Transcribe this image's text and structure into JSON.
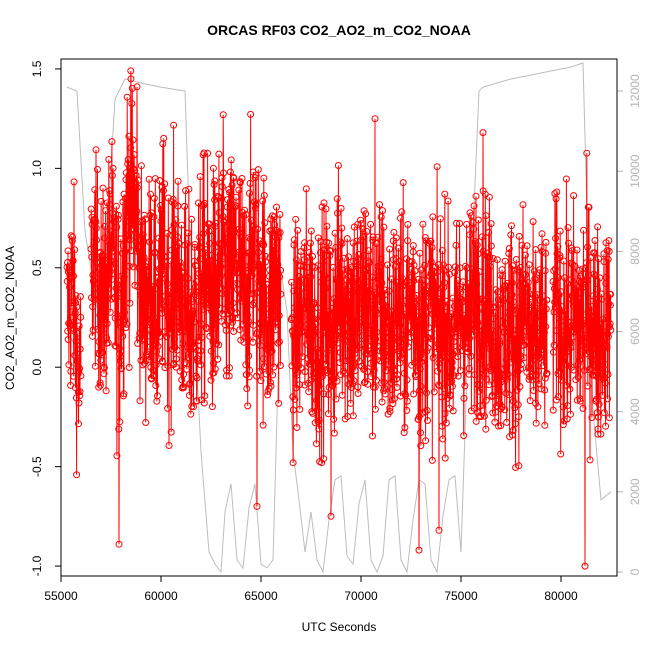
{
  "chart_data": {
    "type": "scatter",
    "title": "ORCAS RF03 CO2_AO2_m_CO2_NOAA",
    "xlabel": "UTC Seconds",
    "ylabel": "CO2_AO2_m_CO2_NOAA",
    "xlim": [
      55000,
      82800
    ],
    "ylim": [
      -1.05,
      1.55
    ],
    "y2lim": [
      -100,
      12800
    ],
    "x_ticks": [
      55000,
      60000,
      65000,
      70000,
      75000,
      80000
    ],
    "x_tick_labels": [
      "55000",
      "60000",
      "65000",
      "70000",
      "75000",
      "80000"
    ],
    "y_ticks": [
      -1.0,
      -0.5,
      0.0,
      0.5,
      1.0,
      1.5
    ],
    "y_tick_labels": [
      "-1.0",
      "-0.5",
      "0.0",
      "0.5",
      "1.0",
      "1.5"
    ],
    "y2_ticks": [
      0,
      2000,
      4000,
      6000,
      8000,
      10000,
      12000
    ],
    "y2_tick_labels": [
      "0",
      "2000",
      "4000",
      "6000",
      "8000",
      "10000",
      "12000"
    ],
    "colors": {
      "co2": "#ff0000",
      "altitude": "#bdbdbd"
    },
    "grid": false,
    "co2_series": {
      "x": [
        55300,
        55600,
        55900,
        56300,
        56700,
        57100,
        57500,
        57900,
        58300,
        58600,
        58900,
        59200,
        59500,
        59800,
        60100,
        60400,
        60700,
        61000,
        61400,
        61800,
        62200,
        62600,
        63000,
        63400,
        63800,
        64200,
        64600,
        65000,
        65400,
        65800,
        66200,
        66600,
        67000,
        67400,
        67800,
        68200,
        68600,
        69000,
        69400,
        69800,
        70200,
        70600,
        71000,
        71400,
        71800,
        72200,
        72600,
        73000,
        73400,
        73800,
        74200,
        74600,
        75000,
        75400,
        75800,
        76200,
        76600,
        77000,
        77400,
        77800,
        78200,
        78600,
        79000,
        79400,
        79800,
        80200,
        80600,
        81000,
        81400,
        81800,
        82200,
        82500
      ],
      "y": [
        0.25,
        0.4,
        -0.1,
        0.35,
        0.55,
        0.3,
        0.6,
        0.2,
        0.8,
        0.9,
        0.5,
        0.3,
        0.45,
        0.2,
        0.55,
        0.3,
        0.5,
        0.35,
        0.2,
        0.3,
        0.45,
        0.35,
        0.5,
        0.4,
        0.55,
        0.3,
        0.6,
        0.45,
        0.25,
        0.5,
        0.15,
        0.1,
        0.25,
        0.3,
        0.15,
        0.25,
        0.2,
        0.4,
        0.3,
        0.25,
        0.35,
        0.2,
        0.3,
        0.15,
        0.25,
        0.2,
        0.35,
        0.15,
        0.3,
        0.2,
        0.25,
        0.1,
        0.3,
        0.2,
        0.4,
        0.3,
        0.25,
        0.1,
        0.2,
        0.15,
        0.3,
        0.05,
        0.2,
        0.1,
        0.35,
        0.15,
        0.25,
        0.2,
        0.3,
        0.15,
        0.2,
        0.25
      ],
      "spread": [
        0.45,
        0.5,
        0.4,
        0.45,
        0.45,
        0.5,
        0.5,
        0.55,
        0.6,
        0.55,
        0.5,
        0.5,
        0.5,
        0.5,
        0.55,
        0.5,
        0.55,
        0.5,
        0.55,
        0.55,
        0.55,
        0.55,
        0.6,
        0.55,
        0.55,
        0.55,
        0.55,
        0.55,
        0.5,
        0.55,
        0.45,
        0.45,
        0.5,
        0.5,
        0.5,
        0.5,
        0.55,
        0.55,
        0.55,
        0.55,
        0.55,
        0.5,
        0.5,
        0.5,
        0.5,
        0.5,
        0.5,
        0.5,
        0.5,
        0.5,
        0.5,
        0.45,
        0.5,
        0.5,
        0.55,
        0.5,
        0.5,
        0.45,
        0.5,
        0.5,
        0.5,
        0.5,
        0.45,
        0.45,
        0.5,
        0.5,
        0.5,
        0.55,
        0.5,
        0.5,
        0.45,
        0.4
      ],
      "extremes": [
        [
          58500,
          1.45
        ],
        [
          58800,
          1.41
        ],
        [
          57900,
          -0.89
        ],
        [
          81200,
          -1.0
        ],
        [
          72900,
          -0.92
        ],
        [
          70700,
          1.25
        ],
        [
          76100,
          1.18
        ],
        [
          64800,
          -0.7
        ],
        [
          73900,
          -0.82
        ],
        [
          68500,
          -0.75
        ]
      ],
      "gaps": [
        [
          56000,
          56500
        ],
        [
          66000,
          66500
        ],
        [
          79300,
          79600
        ]
      ]
    },
    "altitude_series": {
      "x": [
        55300,
        55800,
        56200,
        57000,
        57700,
        58200,
        59000,
        60000,
        61200,
        61400,
        62000,
        62400,
        62700,
        63000,
        63200,
        63500,
        63800,
        64100,
        64400,
        64700,
        65000,
        65300,
        65600,
        66000,
        66300,
        66600,
        66900,
        67200,
        67500,
        67800,
        68100,
        68400,
        68700,
        69000,
        69300,
        69600,
        69900,
        70200,
        70500,
        70800,
        71100,
        71400,
        71700,
        72000,
        72300,
        72600,
        72900,
        73200,
        73500,
        73800,
        74100,
        74400,
        74700,
        75000,
        75300,
        75600,
        75900,
        76100,
        76800,
        77500,
        78500,
        79500,
        80500,
        81100,
        81300,
        81600,
        82000,
        82500
      ],
      "y": [
        12100,
        12000,
        8500,
        6000,
        11800,
        12300,
        12200,
        12100,
        12000,
        9000,
        3000,
        500,
        200,
        0,
        1500,
        2200,
        300,
        100,
        1600,
        2200,
        200,
        100,
        300,
        7500,
        6500,
        3000,
        1800,
        500,
        1500,
        300,
        0,
        1300,
        2300,
        2400,
        400,
        200,
        1700,
        2300,
        300,
        0,
        400,
        2300,
        2400,
        300,
        0,
        1300,
        2300,
        2200,
        300,
        0,
        1400,
        2300,
        2400,
        500,
        5000,
        8500,
        12000,
        12100,
        12200,
        12300,
        12400,
        12500,
        12600,
        12700,
        9000,
        4000,
        1800,
        2000
      ]
    }
  }
}
